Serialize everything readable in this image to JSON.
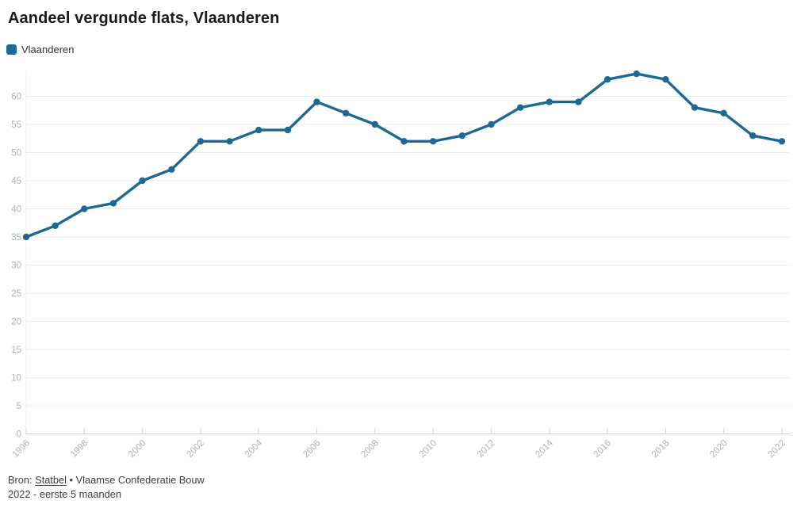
{
  "header": {
    "title": "Aandeel vergunde flats, Vlaanderen"
  },
  "legend": {
    "items": [
      {
        "label": "Vlaanderen",
        "color": "#1d6996"
      }
    ]
  },
  "footer": {
    "source_prefix": "Bron: ",
    "source_link": "Statbel",
    "source_suffix": " • Vlaamse Confederatie Bouw",
    "note": "2022 - eerste 5 maanden"
  },
  "colors": {
    "line": "#1d6996",
    "grid": "#ececec",
    "baseline": "#d4d4d4",
    "tick_text": "#b0b0b0",
    "background": "#ffffff"
  },
  "chart_data": {
    "type": "line",
    "title": "Aandeel vergunde flats, Vlaanderen",
    "x": [
      1996,
      1997,
      1998,
      1999,
      2000,
      2001,
      2002,
      2003,
      2004,
      2005,
      2006,
      2007,
      2008,
      2009,
      2010,
      2011,
      2012,
      2013,
      2014,
      2015,
      2016,
      2017,
      2018,
      2019,
      2020,
      2021,
      2022
    ],
    "series": [
      {
        "name": "Vlaanderen",
        "color": "#1d6996",
        "values": [
          35,
          37,
          40,
          41,
          45,
          47,
          52,
          52,
          54,
          54,
          59,
          57,
          55,
          52,
          52,
          53,
          55,
          58,
          59,
          59,
          63,
          64,
          63,
          58,
          57,
          53,
          52
        ]
      }
    ],
    "x_tick_labels": [
      "1996",
      "1998",
      "2000",
      "2002",
      "2004",
      "2006",
      "2008",
      "2010",
      "2012",
      "2014",
      "2016",
      "2018",
      "2020",
      "2022"
    ],
    "y_ticks": [
      0,
      5,
      10,
      15,
      20,
      25,
      30,
      35,
      40,
      45,
      50,
      55,
      60
    ],
    "ylim": [
      0,
      65
    ],
    "xlabel": "",
    "ylabel": "",
    "grid": "horizontal",
    "legend_position": "top-left",
    "marker": "circle"
  }
}
